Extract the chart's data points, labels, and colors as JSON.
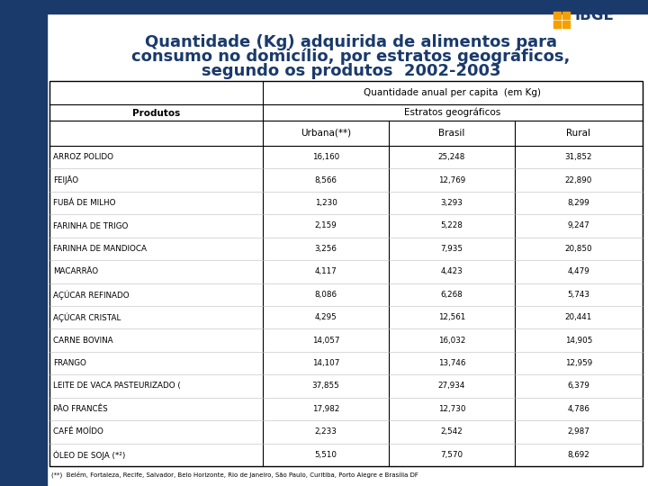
{
  "title_line1": "Quantidade (Kg) adquirida de alimentos para",
  "title_line2": "consumo no domicílio, por estratos geográficos,",
  "title_line3": "segundo os produtos  2002-2003",
  "title_color": "#1a3a6b",
  "bg_color": "#ffffff",
  "left_panel_color": "#1a3a6b",
  "header1_pre": "Quantidade anual ",
  "header1_italic": "per capita",
  "header1_post": "  (em Kg)",
  "header2": "Estratos geográficos",
  "col_headers": [
    "Urbana(**)",
    "Brasil",
    "Rural"
  ],
  "col_produtos": "Produtos",
  "produtos": [
    "ARROZ POLIDO",
    "FEIJÃO",
    "FUBÁ DE MILHO",
    "FARINHA DE TRIGO",
    "FARINHA DE MANDIOCA",
    "MACARRÃO",
    "AÇÚCAR REFINADO",
    "AÇÚCAR CRISTAL",
    "CARNE BOVINA",
    "FRANGO",
    "LEITE DE VACA PASTEURIZADO (",
    "PÃO FRANCÊS",
    "CAFÉ MOÍDO",
    "ÓLEO DE SOJA (*²)"
  ],
  "urbana": [
    "16,160",
    "8,566",
    "1,230",
    "2,159",
    "3,256",
    "4,117",
    "8,086",
    "4,295",
    "14,057",
    "14,107",
    "37,855",
    "17,982",
    "2,233",
    "5,510"
  ],
  "brasil": [
    "25,248",
    "12,769",
    "3,293",
    "5,228",
    "7,935",
    "4,423",
    "6,268",
    "12,561",
    "16,032",
    "13,746",
    "27,934",
    "12,730",
    "2,542",
    "7,570"
  ],
  "rural": [
    "31,852",
    "22,890",
    "8,299",
    "9,247",
    "20,850",
    "4,479",
    "5,743",
    "20,441",
    "14,905",
    "12,959",
    "6,379",
    "4,786",
    "2,987",
    "8,692"
  ],
  "footnote": "(**)  Belém, Fortaleza, Recife, Salvador, Belo Horizonte, Rio de Janeiro, São Paulo, Curitiba, Porto Alegre e Brasília DF",
  "ibge_logo_color": "#1a3a6b",
  "ibge_sq_color": "#f5a000"
}
